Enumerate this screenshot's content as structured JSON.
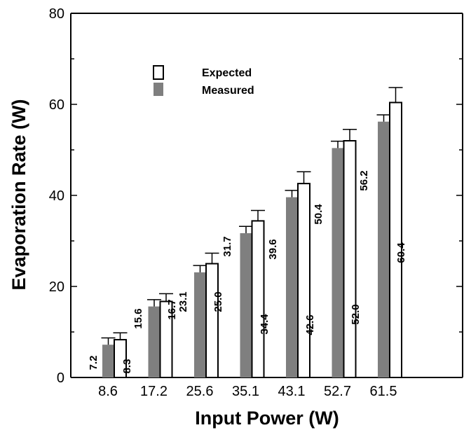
{
  "chart_data": {
    "type": "bar",
    "title": "",
    "xlabel": "Input Power (W)",
    "ylabel": "Evaporation Rate (W)",
    "categories": [
      "8.6",
      "17.2",
      "25.6",
      "35.1",
      "43.1",
      "52.7",
      "61.5"
    ],
    "ylim": [
      0,
      80
    ],
    "yticks": [
      "0",
      "20",
      "40",
      "60",
      "80"
    ],
    "grid": false,
    "legend_placement": "top-left",
    "series": [
      {
        "name": "Measured",
        "values": [
          7.2,
          15.6,
          23.1,
          31.7,
          39.6,
          50.4,
          56.2
        ],
        "labels": [
          "7.2",
          "15.6",
          "23.1",
          "31.7",
          "39.6",
          "50.4",
          "56.2"
        ],
        "error": [
          1.5,
          1.5,
          1.5,
          1.5,
          1.5,
          1.5,
          1.5
        ],
        "color": "#7f7f7f",
        "style": "filled"
      },
      {
        "name": "Expected",
        "values": [
          8.3,
          16.7,
          25.0,
          34.4,
          42.6,
          52.0,
          60.4
        ],
        "labels": [
          "8.3",
          "16.7",
          "25.0",
          "34.4",
          "42.6",
          "52.0",
          "60.4"
        ],
        "error": [
          1.5,
          1.7,
          2.3,
          2.3,
          2.6,
          2.5,
          3.3
        ],
        "color": "#ffffff",
        "style": "outlined"
      }
    ]
  }
}
